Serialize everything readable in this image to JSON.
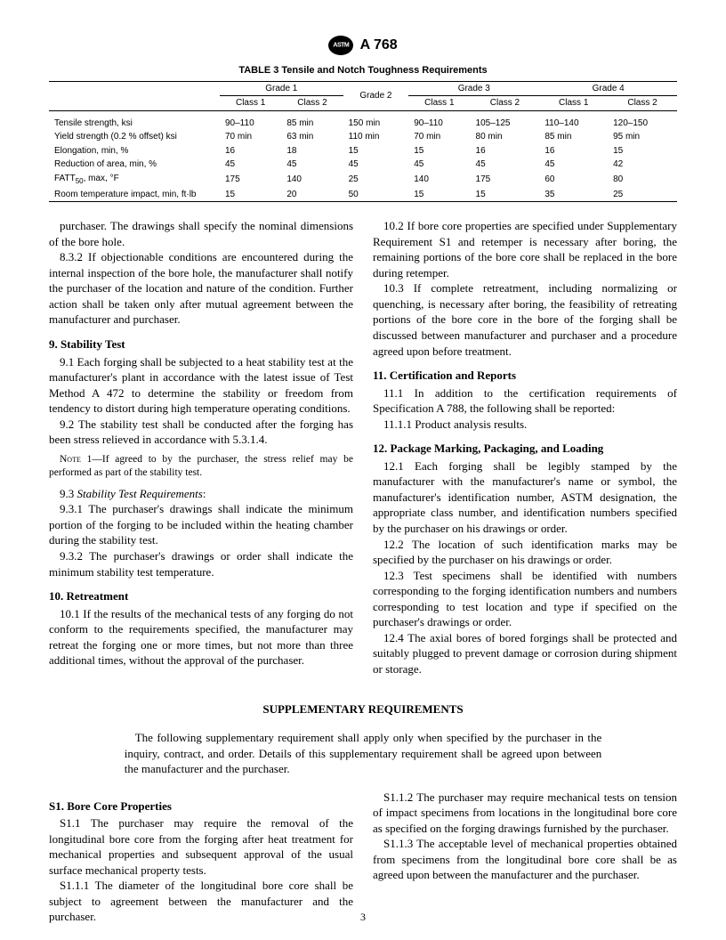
{
  "header": {
    "spec": "A 768"
  },
  "table": {
    "title": "TABLE 3   Tensile and Notch Toughness Requirements",
    "grades": [
      "Grade 1",
      "Grade 2",
      "Grade 3",
      "Grade 4"
    ],
    "classes": [
      "Class 1",
      "Class 2",
      "Class 1",
      "Class 2",
      "Class 1",
      "Class 2"
    ],
    "rows": [
      {
        "label": "Tensile strength, ksi",
        "v": [
          "90–110",
          "85 min",
          "150 min",
          "90–110",
          "105–125",
          "110–140",
          "120–150"
        ]
      },
      {
        "label": "Yield strength (0.2 % offset) ksi",
        "v": [
          "70 min",
          "63 min",
          "110 min",
          "70 min",
          "80 min",
          "85 min",
          "95 min"
        ]
      },
      {
        "label": "Elongation, min, %",
        "v": [
          "16",
          "18",
          "15",
          "15",
          "16",
          "16",
          "15"
        ]
      },
      {
        "label": "Reduction of area, min, %",
        "v": [
          "45",
          "45",
          "45",
          "45",
          "45",
          "45",
          "42"
        ]
      },
      {
        "label": "FATT50, max, °F",
        "v": [
          "175",
          "140",
          "25",
          "140",
          "175",
          "60",
          "80"
        ]
      },
      {
        "label": "Room temperature impact, min, ft·lb",
        "v": [
          "15",
          "20",
          "50",
          "15",
          "15",
          "35",
          "25"
        ]
      }
    ]
  },
  "body": {
    "p832a": "purchaser. The drawings shall specify the nominal dimensions of the bore hole.",
    "p832b": "8.3.2 If objectionable conditions are encountered during the internal inspection of the bore hole, the manufacturer shall notify the purchaser of the location and nature of the condition. Further action shall be taken only after mutual agreement between the manufacturer and purchaser.",
    "s9": "9. Stability Test",
    "p91": "9.1 Each forging shall be subjected to a heat stability test at the manufacturer's plant in accordance with the latest issue of Test Method A 472 to determine the stability or freedom from tendency to distort during high temperature operating conditions.",
    "p92": "9.2 The stability test shall be conducted after the forging has been stress relieved in accordance with 5.3.1.4.",
    "note1_label": "Note 1—",
    "note1": "If agreed to by the purchaser, the stress relief may be performed as part of the stability test.",
    "p93": "9.3",
    "p93t": "Stability Test Requirements",
    "p931": "9.3.1 The purchaser's drawings shall indicate the minimum portion of the forging to be included within the heating chamber during the stability test.",
    "p932": "9.3.2 The purchaser's drawings or order shall indicate the minimum stability test temperature.",
    "s10": "10. Retreatment",
    "p101": "10.1 If the results of the mechanical tests of any forging do not conform to the requirements specified, the manufacturer may retreat the forging one or more times, but not more than three additional times, without the approval of the purchaser.",
    "p102": "10.2 If bore core properties are specified under Supplementary Requirement S1 and retemper is necessary after boring, the remaining portions of the bore core shall be replaced in the bore during retemper.",
    "p103": "10.3 If complete retreatment, including normalizing or quenching, is necessary after boring, the feasibility of retreating portions of the bore core in the bore of the forging shall be discussed between manufacturer and purchaser and a procedure agreed upon before treatment.",
    "s11": "11. Certification and Reports",
    "p111": "11.1 In addition to the certification requirements of Specification A 788, the following shall be reported:",
    "p1111": "11.1.1 Product analysis results.",
    "s12": "12. Package Marking, Packaging, and Loading",
    "p121": "12.1 Each forging shall be legibly stamped by the manufacturer with the manufacturer's name or symbol, the manufacturer's identification number, ASTM designation, the appropriate class number, and identification numbers specified by the purchaser on his drawings or order.",
    "p122": "12.2 The location of such identification marks may be specified by the purchaser on his drawings or order.",
    "p123": "12.3 Test specimens shall be identified with numbers corresponding to the forging identification numbers and numbers corresponding to test location and type if specified on the purchaser's drawings or order.",
    "p124": "12.4 The axial bores of bored forgings shall be protected and suitably plugged to prevent damage or corrosion during shipment or storage."
  },
  "supp": {
    "title": "SUPPLEMENTARY REQUIREMENTS",
    "intro": "The following supplementary requirement shall apply only when specified by the purchaser in the inquiry, contract, and order. Details of this supplementary requirement shall be agreed upon between the manufacturer and the purchaser.",
    "s1": "S1. Bore Core Properties",
    "p11": "S1.1 The purchaser may require the removal of the longitudinal bore core from the forging after heat treatment for mechanical properties and subsequent approval of the usual surface mechanical property tests.",
    "p111": "S1.1.1 The diameter of the longitudinal bore core shall be subject to agreement between the manufacturer and the purchaser.",
    "p112": "S1.1.2 The purchaser may require mechanical tests on tension of impact specimens from locations in the longitudinal bore core as specified on the forging drawings furnished by the purchaser.",
    "p113": "S1.1.3 The acceptable level of mechanical properties obtained from specimens from the longitudinal bore core shall be as agreed upon between the manufacturer and the purchaser."
  },
  "pagenum": "3"
}
